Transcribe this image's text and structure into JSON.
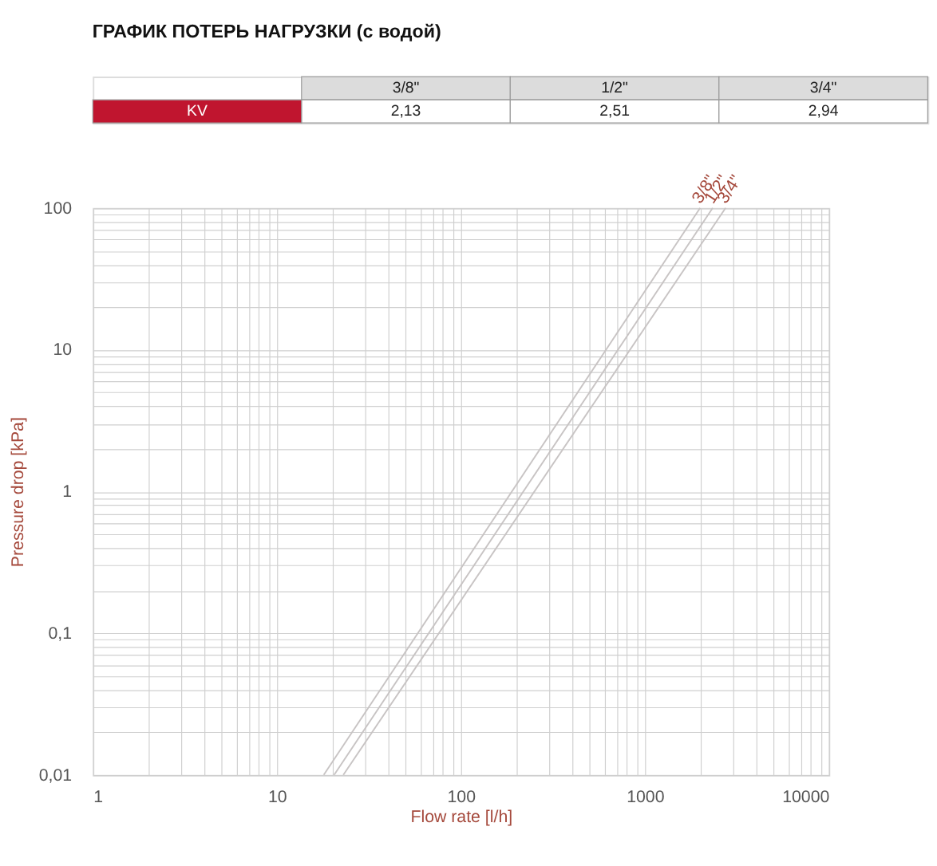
{
  "chart_data": [
    {
      "type": "other",
      "title": "ГРАФИК ПОТЕРЬ НАГРУЗКИ (с водой)",
      "ylabel": "KV",
      "categories": [
        "3/8\"",
        "1/2\"",
        "3/4\""
      ],
      "values": [
        2.13,
        2.51,
        2.94
      ],
      "value_labels": [
        "2,13",
        "2,51",
        "2,94"
      ]
    },
    {
      "type": "line",
      "xlabel": "Flow rate [l/h]",
      "ylabel": "Pressure drop [kPa]",
      "log": "xy",
      "grid": true,
      "line_style": "solid",
      "xlim": [
        1,
        10000
      ],
      "xticks": [
        1,
        10,
        100,
        1000,
        10000
      ],
      "ylim": [
        0.01,
        100
      ],
      "yticks": [
        {
          "value": 0.01,
          "label": "0,01"
        },
        {
          "value": 0.1,
          "label": "0,1"
        },
        1,
        10,
        100
      ],
      "series": [
        {
          "name": "3/8\"",
          "color": "#c8c4c4",
          "x": [
            18,
            2000
          ],
          "values": [
            0.01,
            100
          ]
        },
        {
          "name": "1/2\"",
          "color": "#c8c4c4",
          "x": [
            20.5,
            2340
          ],
          "values": [
            0.01,
            100
          ]
        },
        {
          "name": "3/4\"",
          "color": "#c8c4c4",
          "x": [
            23,
            2750
          ],
          "values": [
            0.01,
            100
          ]
        }
      ]
    }
  ]
}
